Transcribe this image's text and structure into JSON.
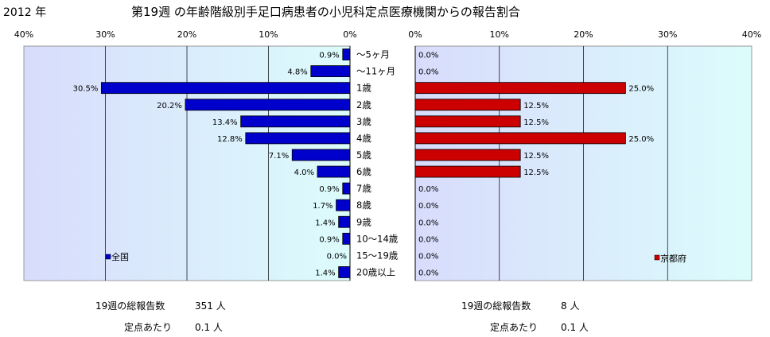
{
  "header": {
    "year": "2012 年",
    "title": "第19週 の年齢階級別手足口病患者の小児科定点医療機関からの報告割合"
  },
  "chart_data": {
    "type": "bar",
    "orientation": "horizontal",
    "categories": [
      "～5ヶ月",
      "～11ヶ月",
      "1歳",
      "2歳",
      "3歳",
      "4歳",
      "5歳",
      "6歳",
      "7歳",
      "8歳",
      "9歳",
      "10～14歳",
      "15～19歳",
      "20歳以上"
    ],
    "xlim": [
      0,
      40
    ],
    "ticks": [
      "40%",
      "30%",
      "20%",
      "10%",
      "0%"
    ],
    "right_ticks": [
      "0%",
      "10%",
      "20%",
      "30%",
      "40%"
    ],
    "grid": true,
    "series": [
      {
        "name": "全国",
        "color": "#0000cc",
        "panel": "left",
        "values": [
          0.9,
          4.8,
          30.5,
          20.2,
          13.4,
          12.8,
          7.1,
          4.0,
          0.9,
          1.7,
          1.4,
          0.9,
          0.0,
          1.4
        ],
        "labels": [
          "0.9%",
          "4.8%",
          "30.5%",
          "20.2%",
          "13.4%",
          "12.8%",
          "7.1%",
          "4.0%",
          "0.9%",
          "1.7%",
          "1.4%",
          "0.9%",
          "0.0%",
          "1.4%"
        ],
        "legend_position": "bottom-left"
      },
      {
        "name": "京都府",
        "color": "#cc0000",
        "panel": "right",
        "values": [
          0.0,
          0.0,
          25.0,
          12.5,
          12.5,
          25.0,
          12.5,
          12.5,
          0.0,
          0.0,
          0.0,
          0.0,
          0.0,
          0.0
        ],
        "labels": [
          "0.0%",
          "0.0%",
          "25.0%",
          "12.5%",
          "12.5%",
          "25.0%",
          "12.5%",
          "12.5%",
          "0.0%",
          "0.0%",
          "0.0%",
          "0.0%",
          "0.0%",
          "0.0%"
        ],
        "legend_position": "bottom-right"
      }
    ]
  },
  "summary": {
    "left": {
      "total_label": "19週の総報告数",
      "total_value": "351 人",
      "per_label": "定点あたり",
      "per_value": "0.1 人"
    },
    "right": {
      "total_label": "19週の総報告数",
      "total_value": "8 人",
      "per_label": "定点あたり",
      "per_value": "0.1 人"
    }
  }
}
